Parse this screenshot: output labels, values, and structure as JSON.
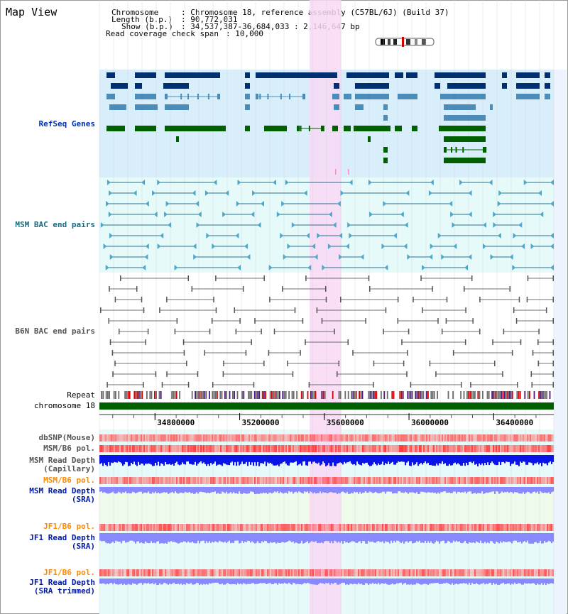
{
  "app": {
    "title": "Map View"
  },
  "info": {
    "chromosome_key": "Chromosome",
    "chromosome_value": ": Chromosome 18, reference assembly (C57BL/6J) (Build 37)",
    "length_key": "Length (b.p.)",
    "length_value": ": 90,772,031",
    "show_key": "Show (b.p.)",
    "show_value": ": 34,537,387-36,684,033 : 2,146,647 bp",
    "coverage_key": "Read coverage check span",
    "coverage_value": ": 10,000"
  },
  "tracks": {
    "refseq": "RefSeq Genes",
    "msm_bac": "MSM BAC end pairs",
    "b6n_bac": "B6N BAC end pairs",
    "repeat": "Repeat",
    "chromosome": "chromosome 18",
    "dbsnp": "dbSNP(Mouse)",
    "msm_b6_pol_1": "MSM/B6 pol.",
    "msm_depth_cap_1": "MSM Read Depth",
    "msm_depth_cap_2": "(Capillary)",
    "msm_b6_pol_2": "MSM/B6 pol.",
    "msm_depth_sra_1": "MSM Read Depth",
    "msm_depth_sra_2": "(SRA)",
    "jf1_b6_pol_1": "JF1/B6 pol.",
    "jf1_depth_sra_1": "JF1 Read Depth",
    "jf1_depth_sra_2": "(SRA)",
    "jf1_b6_pol_2": "JF1/B6 pol.",
    "jf1_depth_trim_1": "JF1 Read Depth",
    "jf1_depth_trim_2": "(SRA trimmed)"
  },
  "axis": {
    "ticks": [
      34800000,
      35200000,
      35600000,
      36000000,
      36400000
    ],
    "range": [
      34537387,
      36684033
    ]
  },
  "highlight": {
    "start": 35530000,
    "end": 35680000
  },
  "colors": {
    "refseq_dark": "#003070",
    "refseq_mid": "#4b8db8",
    "refseq_green": "#006000",
    "msm_line": "#2a7090",
    "b6n_line": "#707070",
    "highlight": "#f8d8f4",
    "chromosome_bar": "#006000",
    "depth_dark": "#0a14e6",
    "depth_light": "#8888ff",
    "pol": "#ff3030"
  }
}
